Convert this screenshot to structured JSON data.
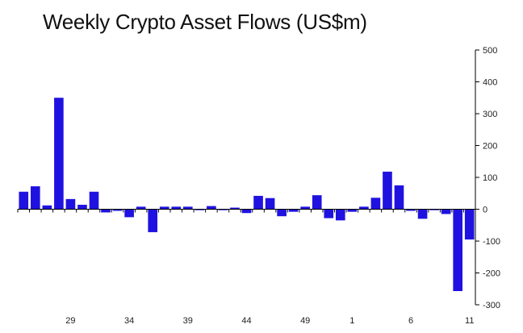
{
  "chart_data": {
    "type": "bar",
    "title": "Weekly Crypto Asset Flows (US$m)",
    "x": [
      25,
      26,
      27,
      28,
      29,
      30,
      31,
      32,
      33,
      34,
      35,
      36,
      37,
      38,
      39,
      40,
      41,
      42,
      43,
      44,
      45,
      46,
      47,
      48,
      49,
      50,
      51,
      52,
      1,
      2,
      3,
      4,
      5,
      6,
      7,
      8,
      9,
      10,
      11
    ],
    "values": [
      55,
      72,
      12,
      350,
      32,
      14,
      55,
      -10,
      -5,
      -25,
      8,
      -72,
      8,
      8,
      8,
      -3,
      10,
      -3,
      5,
      -12,
      42,
      35,
      -22,
      -8,
      8,
      44,
      -28,
      -35,
      -8,
      8,
      36,
      118,
      75,
      -5,
      -30,
      -3,
      -15,
      -257,
      -95
    ],
    "x_tick_labels": [
      "29",
      "34",
      "39",
      "44",
      "49",
      "1",
      "6",
      "11"
    ],
    "x_tick_values": [
      29,
      34,
      39,
      44,
      49,
      1,
      6,
      11
    ],
    "y_ticks": [
      500,
      400,
      300,
      200,
      100,
      0,
      -100,
      -200,
      -300
    ],
    "ylim": [
      -300,
      500
    ],
    "y_axis_side": "right",
    "grid": false,
    "bar_color": "#1f12e0"
  }
}
